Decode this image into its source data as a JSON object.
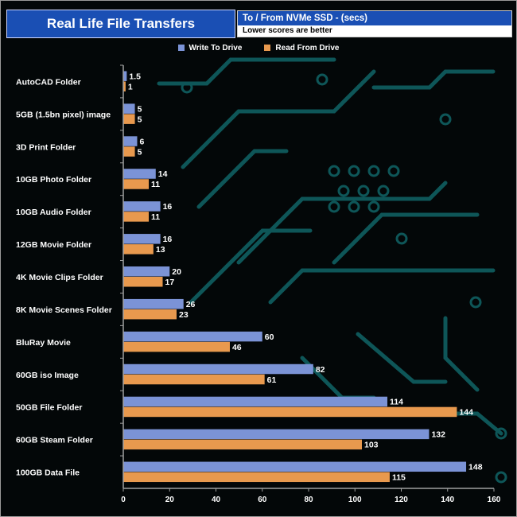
{
  "header": {
    "title": "Real Life File Transfers",
    "subtitle": "To /  From NVMe  SSD - (secs)",
    "note": "Lower scores are better"
  },
  "colors": {
    "write": "#7b93d6",
    "read": "#e8994e",
    "axis": "#a0a0a0",
    "text": "#ffffff",
    "circuit": "#0e5658"
  },
  "chart_data": {
    "type": "bar",
    "orientation": "horizontal",
    "title": "Real Life File Transfers",
    "categories": [
      "AutoCAD Folder",
      "5GB (1.5bn pixel) image",
      "3D Print Folder",
      "10GB Photo Folder",
      "10GB Audio Folder",
      "12GB Movie Folder",
      "4K Movie Clips Folder",
      "8K Movie Scenes Folder",
      "BluRay Movie",
      "60GB iso Image",
      "50GB File Folder",
      "60GB Steam Folder",
      "100GB Data File"
    ],
    "series": [
      {
        "name": "Write To  Drive",
        "values": [
          1.5,
          5,
          6,
          14,
          16,
          16,
          20,
          26,
          60,
          82,
          114,
          132,
          148
        ]
      },
      {
        "name": "Read From  Drive",
        "values": [
          1,
          5,
          5,
          11,
          11,
          13,
          17,
          23,
          46,
          61,
          144,
          103,
          115
        ]
      }
    ],
    "xlim": [
      0,
      160
    ],
    "xticks": [
      0,
      20,
      40,
      60,
      80,
      100,
      120,
      140,
      160
    ],
    "grid": false,
    "legend": "top-center"
  }
}
